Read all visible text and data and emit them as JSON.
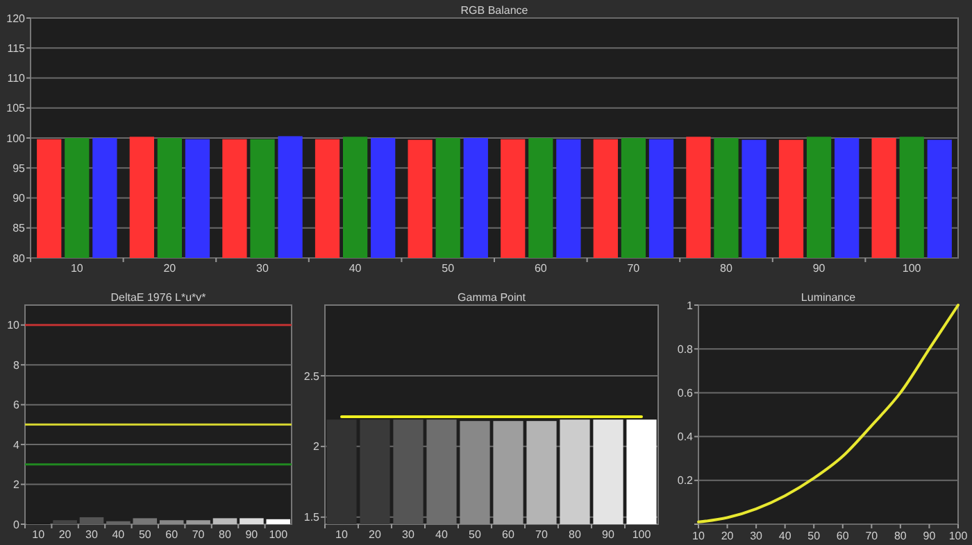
{
  "chart_data": [
    {
      "type": "bar",
      "title": "RGB Balance",
      "categories": [
        "10",
        "20",
        "30",
        "40",
        "50",
        "60",
        "70",
        "80",
        "90",
        "100"
      ],
      "series": [
        {
          "color": "#ff3333",
          "values": [
            99.8,
            100.2,
            99.8,
            99.8,
            99.7,
            99.8,
            99.8,
            100.2,
            99.7,
            100
          ]
        },
        {
          "color": "#1f8f1f",
          "values": [
            100,
            100,
            99.8,
            100.2,
            100,
            100,
            100,
            100,
            100.2,
            100.2
          ]
        },
        {
          "color": "#3333ff",
          "values": [
            100,
            99.8,
            100.3,
            100,
            100,
            99.8,
            99.8,
            99.7,
            100,
            99.7
          ]
        }
      ],
      "ylim": [
        80,
        120
      ],
      "yticks": [
        80,
        85,
        90,
        95,
        100,
        105,
        110,
        115,
        120
      ],
      "grid": "y"
    },
    {
      "type": "bar",
      "title": "DeltaE 1976 L*u*v*",
      "categories": [
        "10",
        "20",
        "30",
        "40",
        "50",
        "60",
        "70",
        "80",
        "90",
        "100"
      ],
      "values": [
        0.05,
        0.2,
        0.35,
        0.15,
        0.3,
        0.2,
        0.2,
        0.3,
        0.3,
        0.25
      ],
      "colors": [
        "#1a1a1a",
        "#444444",
        "#555555",
        "#666666",
        "#777777",
        "#888888",
        "#999999",
        "#bbbbbb",
        "#dddddd",
        "#ffffff"
      ],
      "ylim": [
        0,
        11
      ],
      "yticks": [
        0,
        2,
        4,
        6,
        8,
        10
      ],
      "grid": "y",
      "ref_lines": [
        {
          "axis": "y",
          "value": 10,
          "color": "#c03030"
        },
        {
          "axis": "y",
          "value": 5,
          "color": "#d8d830"
        },
        {
          "axis": "y",
          "value": 3,
          "color": "#208a20"
        }
      ]
    },
    {
      "type": "bar",
      "title": "Gamma Point",
      "categories": [
        "10",
        "20",
        "30",
        "40",
        "50",
        "60",
        "70",
        "80",
        "90",
        "100"
      ],
      "series": [
        {
          "colors": [
            "#333333",
            "#3a3a3a",
            "#555555",
            "#6e6e6e",
            "#888888",
            "#9e9e9e",
            "#b4b4b4",
            "#cccccc",
            "#e4e4e4",
            "#ffffff"
          ],
          "values": [
            2.19,
            2.19,
            2.19,
            2.19,
            2.18,
            2.18,
            2.18,
            2.19,
            2.19,
            2.19
          ]
        },
        {
          "type": "line",
          "color": "#f0f020",
          "values": [
            2.21,
            2.21,
            2.21,
            2.21,
            2.21,
            2.21,
            2.21,
            2.21,
            2.21,
            2.21
          ]
        }
      ],
      "ylim": [
        1.45,
        3
      ],
      "yticks": [
        1.5,
        2,
        2.5
      ],
      "grid": "y"
    },
    {
      "type": "line",
      "title": "Luminance",
      "x": [
        10,
        20,
        30,
        40,
        50,
        60,
        70,
        80,
        90,
        100
      ],
      "series": [
        {
          "color": "#e8e830",
          "values": [
            0.01,
            0.03,
            0.07,
            0.13,
            0.21,
            0.31,
            0.45,
            0.6,
            0.8,
            1
          ]
        }
      ],
      "xlim": [
        10,
        100
      ],
      "xticks": [
        10,
        20,
        30,
        40,
        50,
        60,
        70,
        80,
        90,
        100
      ],
      "ylim": [
        0,
        1
      ],
      "yticks": [
        {
          "value": 0,
          "label": null
        },
        0.2,
        0.4,
        0.6,
        0.8,
        1
      ],
      "grid": "y"
    }
  ]
}
